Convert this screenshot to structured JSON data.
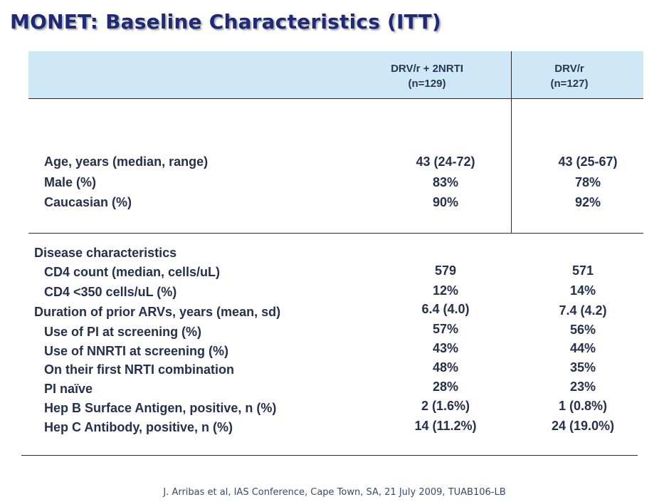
{
  "title": "MONET: Baseline Characteristics (ITT)",
  "columns": [
    {
      "line1": "DRV/r + 2NRTI",
      "line2": "(n=129)"
    },
    {
      "line1": "DRV/r",
      "line2": "(n=127)"
    }
  ],
  "demographics": [
    {
      "label": "Age, years (median, range)",
      "v1": "43 (24-72)",
      "v2": "43 (25-67)"
    },
    {
      "label": "Male (%)",
      "v1": "83%",
      "v2": "78%"
    },
    {
      "label": "Caucasian (%)",
      "v1": "90%",
      "v2": "92%"
    }
  ],
  "disease_heading": "Disease characteristics",
  "disease": [
    {
      "label": "CD4 count (median, cells/uL)",
      "v1": "579",
      "v2": "571"
    },
    {
      "label": "CD4 <350 cells/uL (%)",
      "v1": "12%",
      "v2": "14%"
    },
    {
      "label": "Duration of prior ARVs, years (mean, sd)",
      "v1": "6.4 (4.0)",
      "v2": "7.4 (4.2)"
    },
    {
      "label": "Use of PI at screening (%)",
      "v1": "57%",
      "v2": "56%"
    },
    {
      "label": "Use of NNRTI at screening (%)",
      "v1": "43%",
      "v2": "44%"
    },
    {
      "label": "On their first NRTI combination",
      "v1": "48%",
      "v2": "35%"
    },
    {
      "label": "PI naïve",
      "v1": "28%",
      "v2": "23%"
    },
    {
      "label": "Hep B Surface Antigen, positive, n (%)",
      "v1": "2 (1.6%)",
      "v2": "1 (0.8%)"
    },
    {
      "label": "Hep C Antibody, positive, n (%)",
      "v1": "14 (11.2%)",
      "v2": "24 (19.0%)"
    }
  ],
  "footer": "J. Arribas et al, IAS Conference, Cape Town, SA, 21 July 2009, TUAB106-LB",
  "colors": {
    "title": "#1e2a78",
    "header_band": "#cfe8f8",
    "text": "#25304d"
  }
}
